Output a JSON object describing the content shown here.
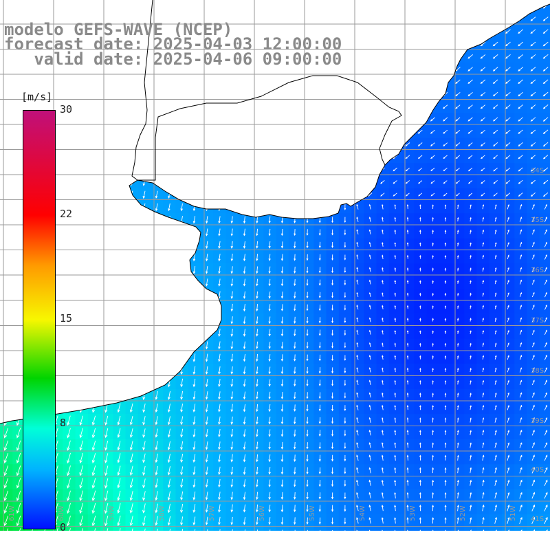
{
  "header": {
    "model_line": "modelo GEFS-WAVE (NCEP)",
    "forecast_line": "forecast date: 2025-04-03 12:00:00",
    "valid_line": "   valid date: 2025-04-06 09:00:00"
  },
  "legend": {
    "unit": "[m/s]",
    "ticks": [
      "30",
      "22",
      "15",
      "8",
      "0"
    ],
    "tick_values": [
      30,
      22,
      15,
      8,
      0
    ],
    "colors": [
      "#0010ff",
      "#00b2ff",
      "#00ffd8",
      "#00d400",
      "#f7f700",
      "#ff9a00",
      "#ff0000",
      "#c0107a"
    ]
  },
  "map": {
    "lat_labels": [
      "34S",
      "35S",
      "36S",
      "37S",
      "38S",
      "39S",
      "40S",
      "41S"
    ],
    "lon_labels": [
      "61W",
      "60W",
      "59W",
      "58W",
      "57W",
      "56W",
      "55W",
      "54W",
      "53W",
      "52W",
      "51W"
    ],
    "land_color": "#ffffff",
    "grid_color": "#9a9a9a"
  }
}
